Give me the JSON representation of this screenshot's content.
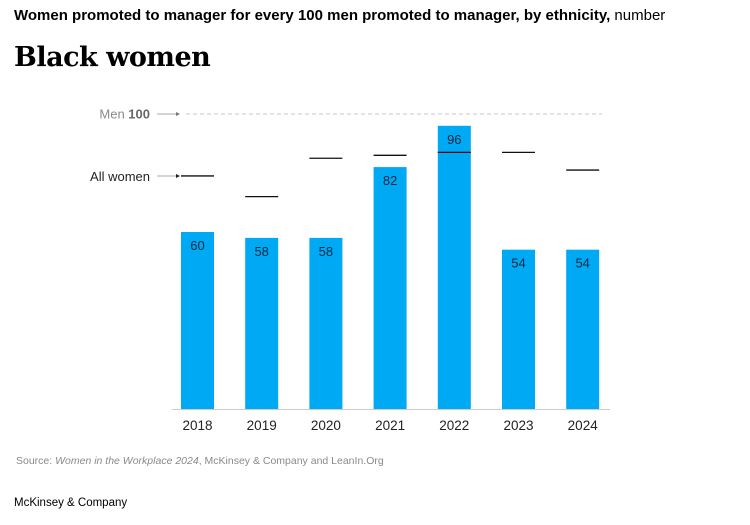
{
  "title": {
    "main": "Women promoted to manager for every 100 men promoted to manager, by ethnicity,",
    "unit": "number"
  },
  "subtitle": "Black women",
  "chart_data": {
    "type": "bar",
    "categories": [
      "2018",
      "2019",
      "2020",
      "2021",
      "2022",
      "2023",
      "2024"
    ],
    "series": [
      {
        "name": "Black women",
        "values": [
          60,
          58,
          58,
          82,
          96,
          54,
          54
        ]
      },
      {
        "name": "All women",
        "values": [
          79,
          72,
          85,
          86,
          87,
          87,
          81
        ]
      }
    ],
    "reference": {
      "label": "Men",
      "value": 100
    },
    "ylim": [
      0,
      100
    ],
    "grid": false,
    "bar_color": "#00A9F4"
  },
  "labels": {
    "men": "Men",
    "men_value": "100",
    "all_women": "All women"
  },
  "source": {
    "prefix": "Source: ",
    "title": "Women in the Workplace 2024",
    "rest": ", McKinsey & Company and LeanIn.Org"
  },
  "brand": "McKinsey & Company"
}
